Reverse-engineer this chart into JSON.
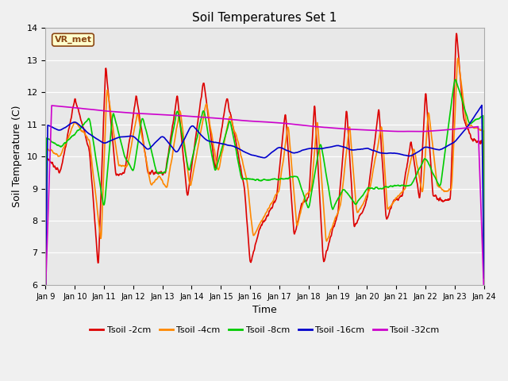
{
  "title": "Soil Temperatures Set 1",
  "xlabel": "Time",
  "ylabel": "Soil Temperature (C)",
  "ylim": [
    6.0,
    14.0
  ],
  "yticks": [
    6.0,
    7.0,
    8.0,
    9.0,
    10.0,
    11.0,
    12.0,
    13.0,
    14.0
  ],
  "xtick_labels": [
    "Jan 9",
    "Jan 10",
    "Jan 11",
    "Jan 12",
    "Jan 13",
    "Jan 14",
    "Jan 15",
    "Jan 16",
    "Jan 17",
    "Jan 18",
    "Jan 19",
    "Jan 20",
    "Jan 21",
    "Jan 22",
    "Jan 23",
    "Jan 24"
  ],
  "series_names": [
    "Tsoil -2cm",
    "Tsoil -4cm",
    "Tsoil -8cm",
    "Tsoil -16cm",
    "Tsoil -32cm"
  ],
  "series_colors": [
    "#dd0000",
    "#ff8800",
    "#00cc00",
    "#0000cc",
    "#cc00cc"
  ],
  "legend_label": "VR_met",
  "plot_bg": "#e8e8e8",
  "fig_bg": "#f0f0f0",
  "grid_color": "#ffffff",
  "title_fontsize": 11,
  "axis_label_fontsize": 9,
  "tick_fontsize": 7,
  "lw": 1.2
}
